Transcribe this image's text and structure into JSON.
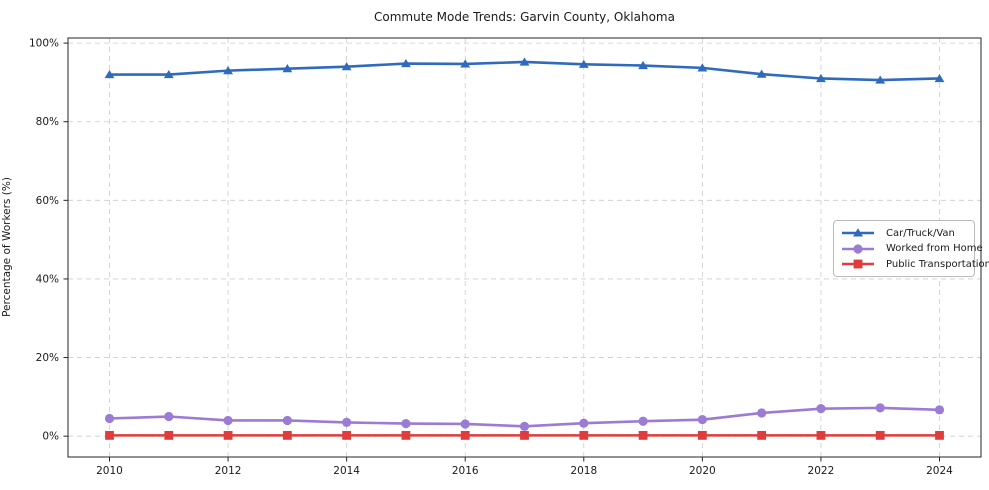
{
  "chart_data": {
    "type": "line",
    "title": "Commute Mode Trends: Garvin County, Oklahoma",
    "xlabel": "",
    "ylabel": "Percentage of Workers (%)",
    "x": [
      2010,
      2011,
      2012,
      2013,
      2014,
      2015,
      2016,
      2017,
      2018,
      2019,
      2020,
      2021,
      2022,
      2023,
      2024
    ],
    "x_ticks": [
      2010,
      2012,
      2014,
      2016,
      2018,
      2020,
      2022,
      2024
    ],
    "x_tick_labels": [
      "2010",
      "2012",
      "2014",
      "2016",
      "2018",
      "2020",
      "2022",
      "2024"
    ],
    "y_ticks": [
      0,
      20,
      40,
      60,
      80,
      100
    ],
    "y_tick_labels": [
      "0%",
      "20%",
      "40%",
      "60%",
      "80%",
      "100%"
    ],
    "xlim": [
      2009.3,
      2024.7
    ],
    "ylim": [
      -5.3,
      101.3
    ],
    "grid": true,
    "grid_style": "dashed",
    "grid_color": "#cccccc",
    "spine_color": "#262626",
    "legend_position": "center right",
    "series": [
      {
        "name": "Car/Truck/Van",
        "color": "#2f6abd",
        "marker": "triangle-up",
        "values": [
          92.0,
          92.0,
          93.0,
          93.5,
          94.0,
          94.8,
          94.7,
          95.2,
          94.6,
          94.3,
          93.7,
          92.1,
          91.0,
          90.6,
          91.0
        ]
      },
      {
        "name": "Worked from Home",
        "color": "#9b7bd4",
        "marker": "circle",
        "values": [
          4.5,
          5.0,
          4.0,
          4.0,
          3.5,
          3.2,
          3.1,
          2.5,
          3.3,
          3.8,
          4.2,
          5.9,
          7.0,
          7.2,
          6.7
        ]
      },
      {
        "name": "Public Transportation",
        "color": "#e03c3c",
        "marker": "square",
        "values": [
          0.2,
          0.2,
          0.2,
          0.2,
          0.2,
          0.2,
          0.2,
          0.2,
          0.2,
          0.2,
          0.2,
          0.2,
          0.2,
          0.2,
          0.2
        ]
      }
    ]
  }
}
